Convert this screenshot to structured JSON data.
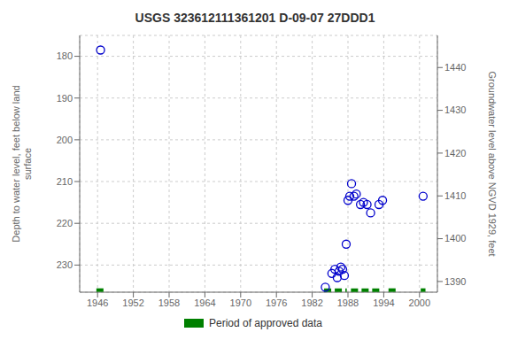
{
  "chart_data": {
    "type": "scatter",
    "title": "USGS 323612111361201 D-09-07 27DDD1",
    "y_label": "Depth to water level, feet below land\nsurface",
    "y2_label": "Groundwater level above NGVD 1929, feet",
    "xlim": [
      1943,
      2003
    ],
    "xticks": [
      1946,
      1952,
      1958,
      1964,
      1970,
      1976,
      1982,
      1988,
      1994,
      2000
    ],
    "ylim": [
      236.5,
      175
    ],
    "yticks": [
      180,
      190,
      200,
      210,
      220,
      230
    ],
    "y2lim": [
      1387.5,
      1447.5
    ],
    "y2ticks": [
      1390,
      1400,
      1410,
      1420,
      1430,
      1440
    ],
    "grid": true,
    "legend": "bottom",
    "series": [
      {
        "type": "scatter",
        "color": "#0000cc",
        "marker": "circle",
        "x": [
          1946.5,
          1984.2,
          1985.3,
          1985.8,
          1986.2,
          1986.5,
          1986.8,
          1987.1,
          1987.4,
          1987.7,
          1988.0,
          1988.3,
          1988.6,
          1989.0,
          1989.4,
          1990.1,
          1990.6,
          1991.2,
          1991.8,
          1993.2,
          1993.8,
          2000.6
        ],
        "values": [
          178.5,
          235.3,
          232.0,
          231.0,
          233.0,
          231.5,
          230.5,
          231.0,
          232.5,
          225.0,
          214.5,
          213.5,
          210.5,
          213.5,
          213.0,
          215.5,
          215.0,
          215.5,
          217.5,
          215.5,
          214.5,
          213.5
        ]
      },
      {
        "name": "Period of approved data",
        "type": "line",
        "color": "#008000",
        "line_style": "dashed",
        "y": 236.0,
        "segments": [
          {
            "x_start": 1945.8,
            "x_end": 1947.2
          },
          {
            "x_start": 1984.0,
            "x_end": 1987.8
          },
          {
            "x_start": 1988.5,
            "x_end": 1993.8
          },
          {
            "x_start": 1994.8,
            "x_end": 1996.0
          },
          {
            "x_start": 2000.2,
            "x_end": 2001.0
          }
        ]
      }
    ]
  }
}
